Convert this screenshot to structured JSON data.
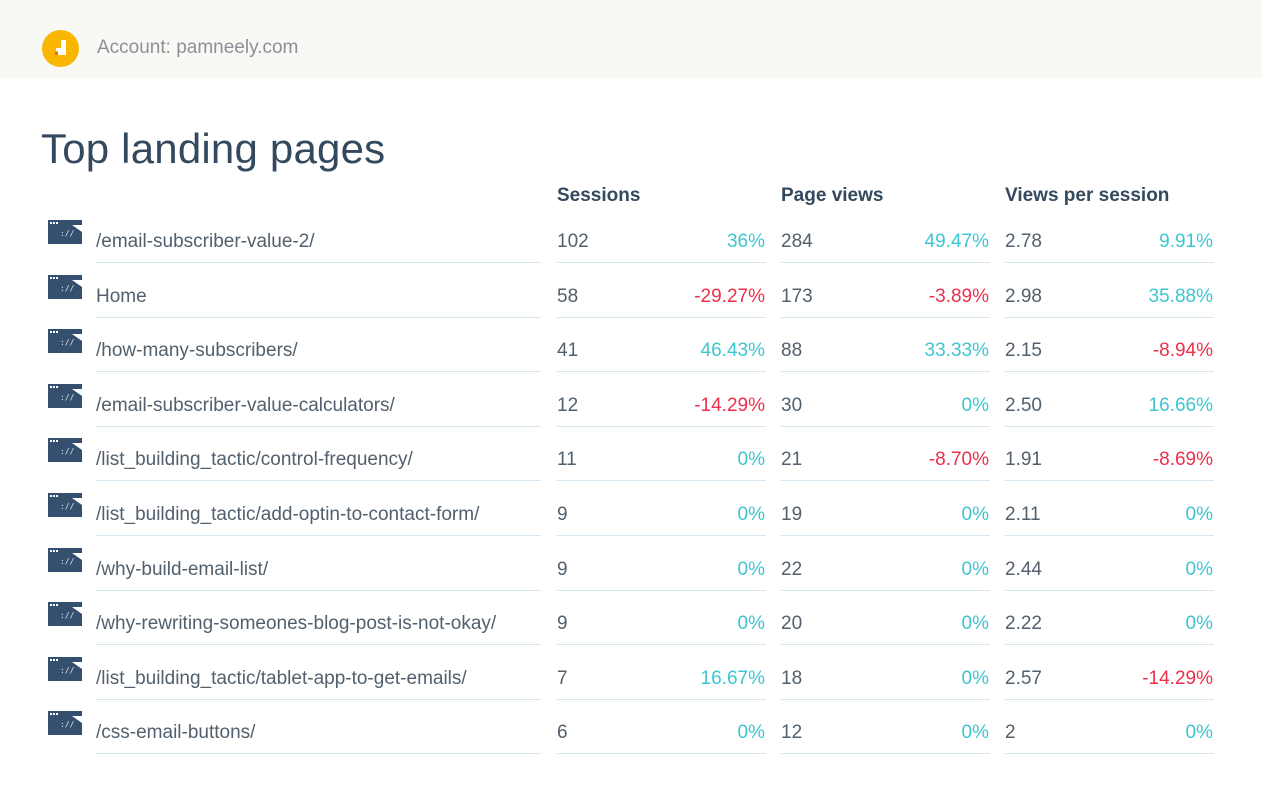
{
  "header": {
    "account_text": "Account: pamneely.com",
    "logo_icon": "analytics-logo-icon",
    "logo_color": "#f9b700"
  },
  "title": "Top landing pages",
  "columns": {
    "sessions": "Sessions",
    "page_views": "Page views",
    "views_per_session": "Views per session"
  },
  "colors": {
    "positive": "#3cc6cf",
    "negative": "#ec2f4b",
    "text": "#52606d",
    "heading": "#34495e"
  },
  "row_icon": "web-page-icon",
  "rows": [
    {
      "page": "/email-subscriber-value-2/",
      "sessions": "102",
      "sessions_change": "36%",
      "page_views": "284",
      "page_views_change": "49.47%",
      "vps": "2.78",
      "vps_change": "9.91%"
    },
    {
      "page": "Home",
      "sessions": "58",
      "sessions_change": "-29.27%",
      "page_views": "173",
      "page_views_change": "-3.89%",
      "vps": "2.98",
      "vps_change": "35.88%"
    },
    {
      "page": "/how-many-subscribers/",
      "sessions": "41",
      "sessions_change": "46.43%",
      "page_views": "88",
      "page_views_change": "33.33%",
      "vps": "2.15",
      "vps_change": "-8.94%"
    },
    {
      "page": "/email-subscriber-value-calculators/",
      "sessions": "12",
      "sessions_change": "-14.29%",
      "page_views": "30",
      "page_views_change": "0%",
      "vps": "2.50",
      "vps_change": "16.66%"
    },
    {
      "page": "/list_building_tactic/control-frequency/",
      "sessions": "11",
      "sessions_change": "0%",
      "page_views": "21",
      "page_views_change": "-8.70%",
      "vps": "1.91",
      "vps_change": "-8.69%"
    },
    {
      "page": "/list_building_tactic/add-optin-to-contact-form/",
      "sessions": "9",
      "sessions_change": "0%",
      "page_views": "19",
      "page_views_change": "0%",
      "vps": "2.11",
      "vps_change": "0%"
    },
    {
      "page": "/why-build-email-list/",
      "sessions": "9",
      "sessions_change": "0%",
      "page_views": "22",
      "page_views_change": "0%",
      "vps": "2.44",
      "vps_change": "0%"
    },
    {
      "page": "/why-rewriting-someones-blog-post-is-not-okay/",
      "sessions": "9",
      "sessions_change": "0%",
      "page_views": "20",
      "page_views_change": "0%",
      "vps": "2.22",
      "vps_change": "0%"
    },
    {
      "page": "/list_building_tactic/tablet-app-to-get-emails/",
      "sessions": "7",
      "sessions_change": "16.67%",
      "page_views": "18",
      "page_views_change": "0%",
      "vps": "2.57",
      "vps_change": "-14.29%"
    },
    {
      "page": "/css-email-buttons/",
      "sessions": "6",
      "sessions_change": "0%",
      "page_views": "12",
      "page_views_change": "0%",
      "vps": "2",
      "vps_change": "0%"
    }
  ]
}
